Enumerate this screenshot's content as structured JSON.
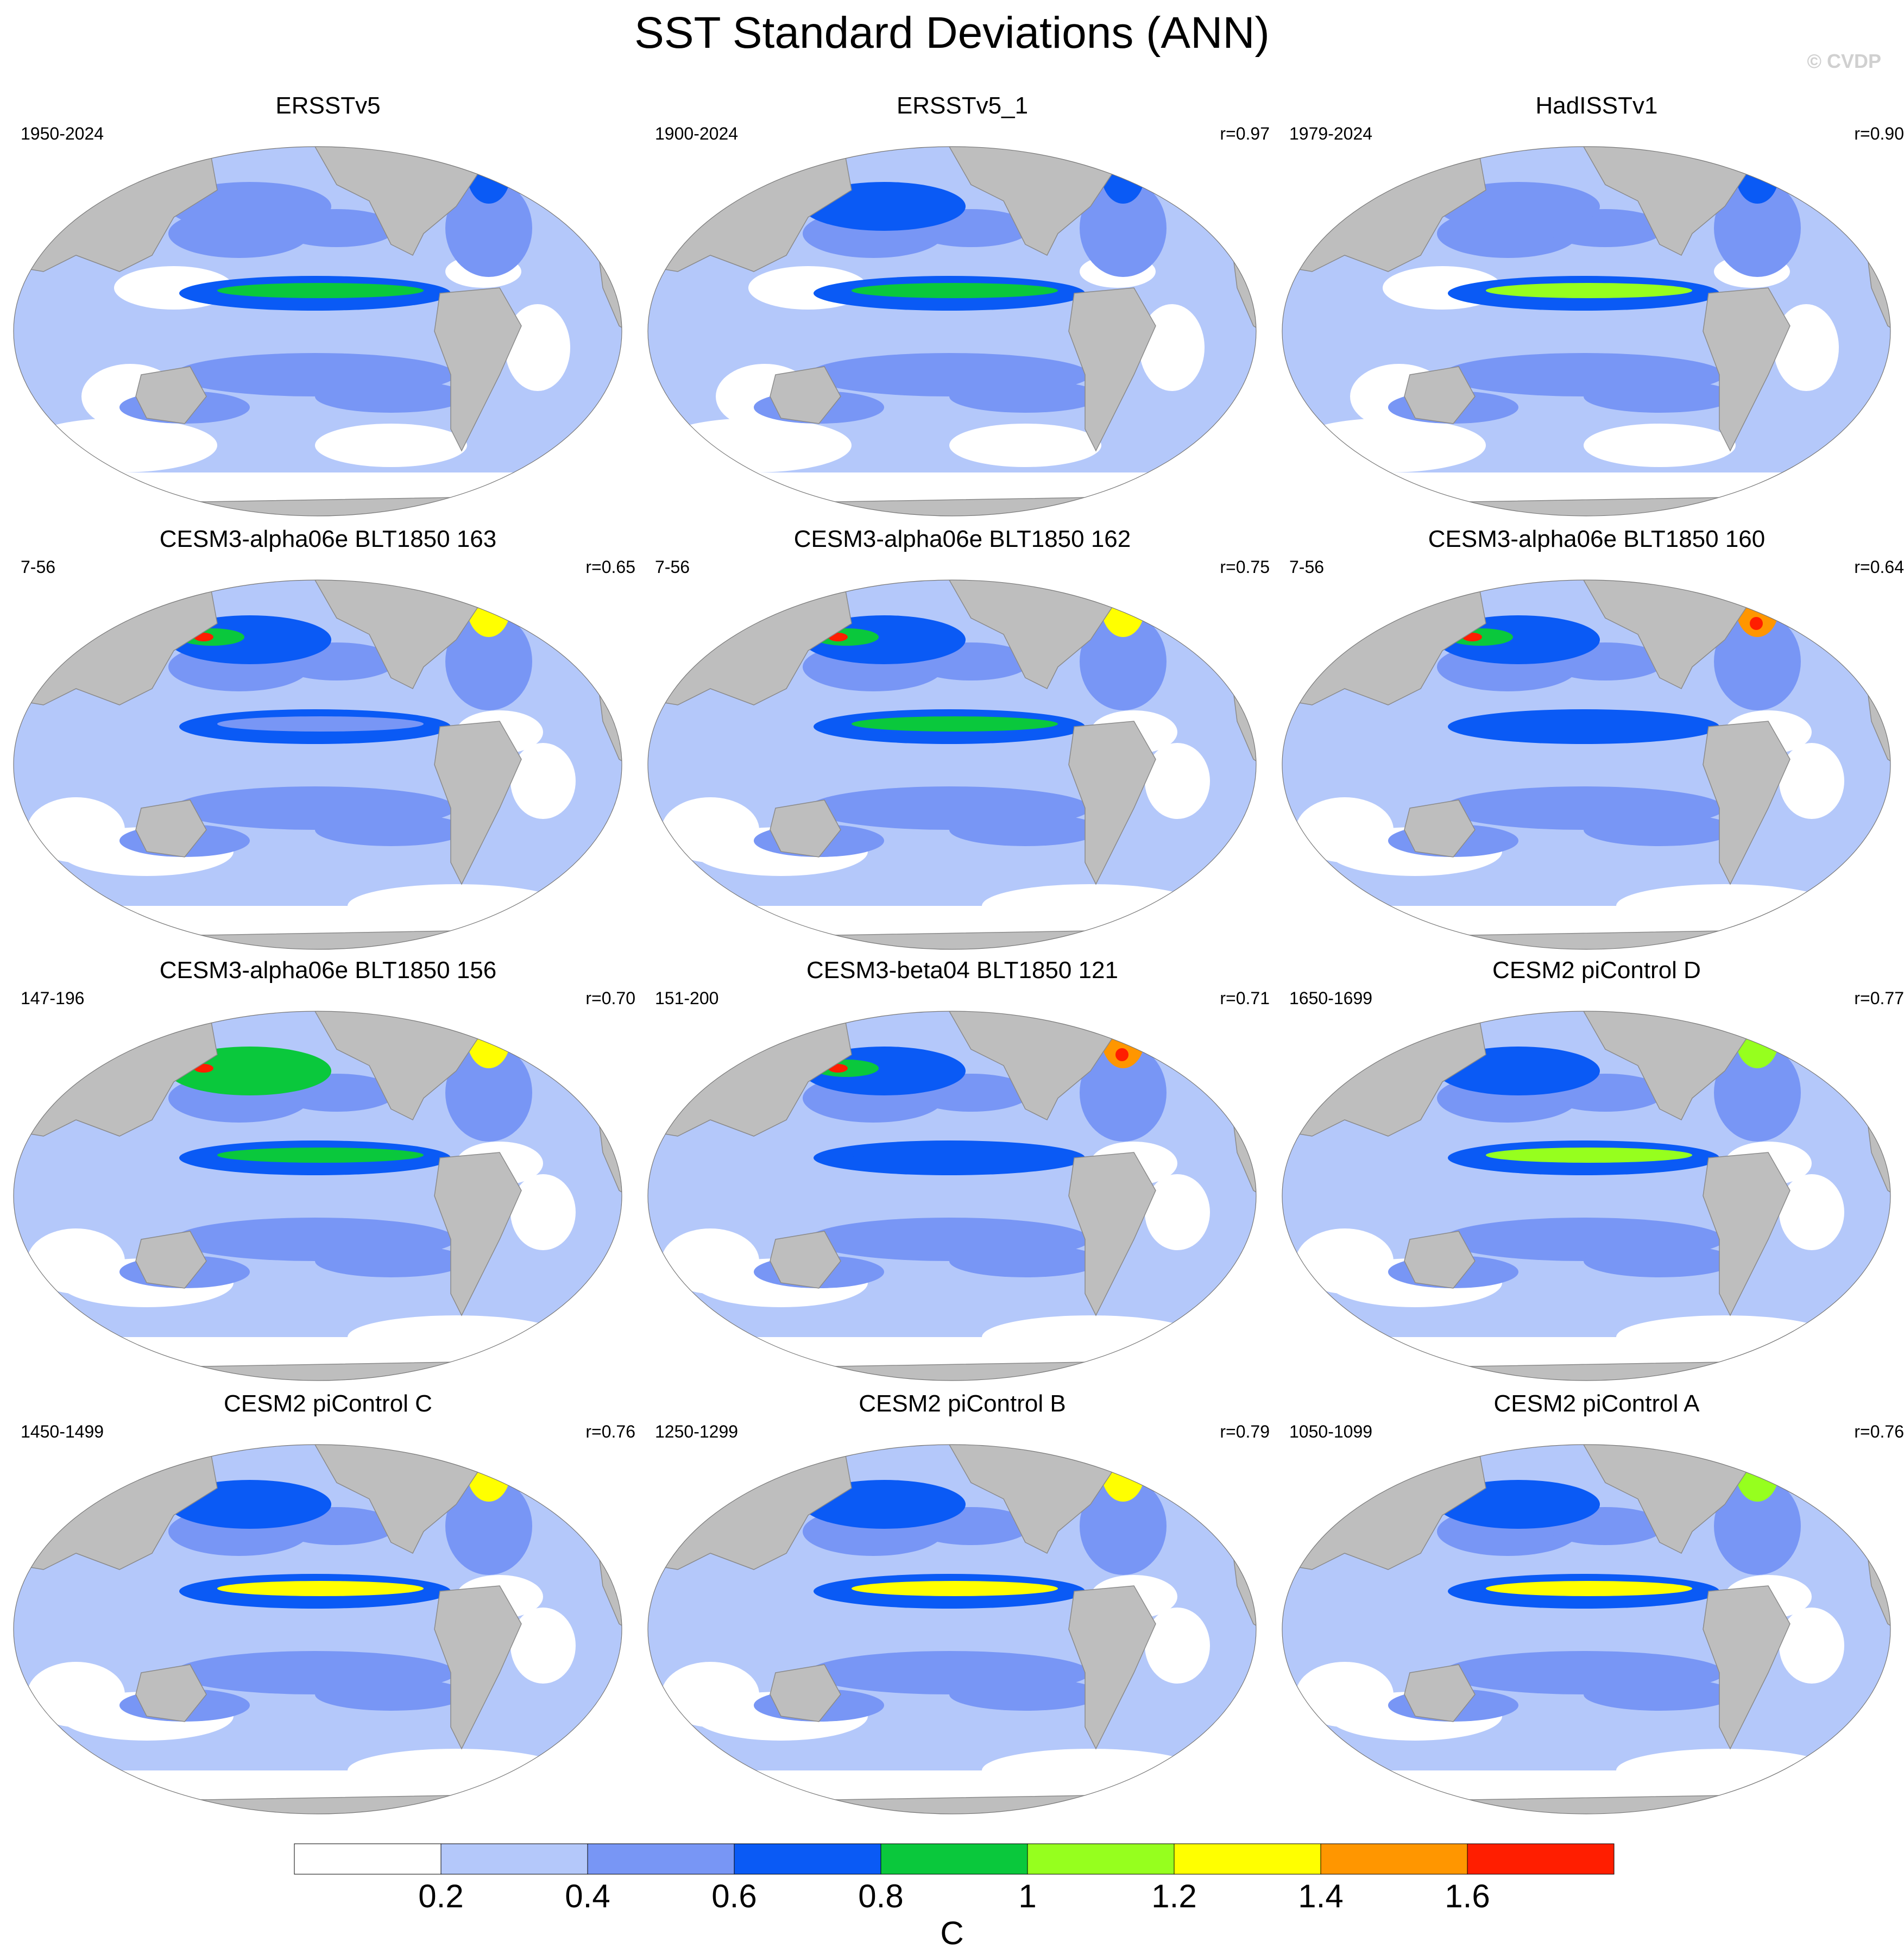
{
  "title": "SST Standard Deviations (ANN)",
  "copyright": "© CVDP",
  "panels": [
    {
      "title": "ERSSTv5",
      "years": "1950-2024",
      "r": "",
      "type": "obs",
      "nino": 0.9,
      "npac": 0.55,
      "natl": 0.7
    },
    {
      "title": "ERSSTv5_1",
      "years": "1900-2024",
      "r": "r=0.97",
      "type": "obs",
      "nino": 0.9,
      "npac": 0.6,
      "natl": 0.7
    },
    {
      "title": "HadISSTv1",
      "years": "1979-2024",
      "r": "r=0.90",
      "type": "obs",
      "nino": 1.0,
      "npac": 0.55,
      "natl": 0.6
    },
    {
      "title": "CESM3-alpha06e BLT1850 163",
      "years": "7-56",
      "r": "r=0.65",
      "type": "cesm3",
      "nino": 0.5,
      "npac": 0.75,
      "natl": 1.3
    },
    {
      "title": "CESM3-alpha06e BLT1850 162",
      "years": "7-56",
      "r": "r=0.75",
      "type": "cesm3",
      "nino": 0.95,
      "npac": 0.75,
      "natl": 1.2
    },
    {
      "title": "CESM3-alpha06e BLT1850 160",
      "years": "7-56",
      "r": "r=0.64",
      "type": "cesm3",
      "nino": 0.7,
      "npac": 0.7,
      "natl": 1.45
    },
    {
      "title": "CESM3-alpha06e BLT1850 156",
      "years": "147-196",
      "r": "r=0.70",
      "type": "cesm3",
      "nino": 0.85,
      "npac": 0.8,
      "natl": 1.3
    },
    {
      "title": "CESM3-beta04 BLT1850 121",
      "years": "151-200",
      "r": "r=0.71",
      "type": "cesm3",
      "nino": 0.7,
      "npac": 0.75,
      "natl": 1.45
    },
    {
      "title": "CESM2 piControl D",
      "years": "1650-1699",
      "r": "r=0.77",
      "type": "cesm2",
      "nino": 1.1,
      "npac": 0.6,
      "natl": 1.0
    },
    {
      "title": "CESM2 piControl C",
      "years": "1450-1499",
      "r": "r=0.76",
      "type": "cesm2",
      "nino": 1.25,
      "npac": 0.6,
      "natl": 1.2
    },
    {
      "title": "CESM2 piControl B",
      "years": "1250-1299",
      "r": "r=0.79",
      "type": "cesm2",
      "nino": 1.25,
      "npac": 0.6,
      "natl": 1.2
    },
    {
      "title": "CESM2 piControl A",
      "years": "1050-1099",
      "r": "r=0.76",
      "type": "cesm2",
      "nino": 1.2,
      "npac": 0.6,
      "natl": 1.1
    }
  ],
  "colorbar": {
    "colors": [
      "#ffffff",
      "#b4c8fa",
      "#7896f5",
      "#0a5af5",
      "#0ac83c",
      "#96ff1e",
      "#ffff00",
      "#ff9600",
      "#ff1e00"
    ],
    "labels": [
      "0.2",
      "0.4",
      "0.6",
      "0.8",
      "1",
      "1.2",
      "1.4",
      "1.6"
    ],
    "unit": "C"
  },
  "land_color": "#bebebe"
}
